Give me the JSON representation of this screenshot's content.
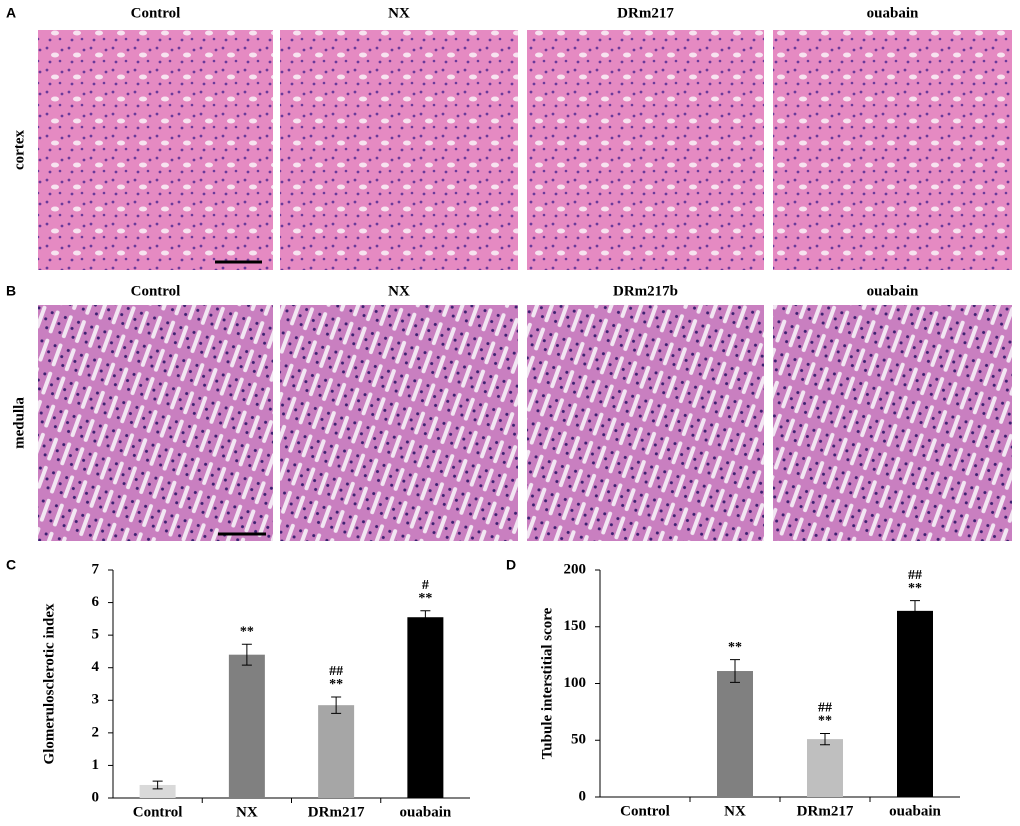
{
  "panels": [
    {
      "letter": "A",
      "row_label": "cortex",
      "columns": [
        "Control",
        "NX",
        "DRm217",
        "ouabain"
      ]
    },
    {
      "letter": "B",
      "row_label": "medulla",
      "columns": [
        "Control",
        "NX",
        "DRm217b",
        "ouabain"
      ]
    }
  ],
  "chart_data": [
    {
      "letter": "C",
      "type": "bar",
      "ylabel": "Glomerulosclerotic index",
      "categories": [
        "Control",
        "NX",
        "DRm217",
        "ouabain"
      ],
      "values": [
        0.4,
        4.4,
        2.85,
        5.55
      ],
      "errors": [
        0.12,
        0.32,
        0.25,
        0.2
      ],
      "colors": [
        "#d9d9d9",
        "#808080",
        "#a6a6a6",
        "#000000"
      ],
      "significance": [
        [],
        [
          "**"
        ],
        [
          "##",
          "**"
        ],
        [
          "#",
          "**"
        ]
      ],
      "ylim": [
        0,
        7
      ],
      "yticks": [
        0,
        1,
        2,
        3,
        4,
        5,
        6,
        7
      ]
    },
    {
      "letter": "D",
      "type": "bar",
      "ylabel": "Tubule interstitial score",
      "categories": [
        "Control",
        "NX",
        "DRm217",
        "ouabain"
      ],
      "values": [
        0,
        111,
        51,
        164
      ],
      "errors": [
        0,
        10,
        5,
        9
      ],
      "colors": [
        "#d9d9d9",
        "#808080",
        "#bfbfbf",
        "#000000"
      ],
      "significance": [
        [],
        [
          "**"
        ],
        [
          "##",
          "**"
        ],
        [
          "##",
          "**"
        ]
      ],
      "ylim": [
        0,
        200
      ],
      "yticks": [
        0,
        50,
        100,
        150,
        200
      ]
    }
  ]
}
